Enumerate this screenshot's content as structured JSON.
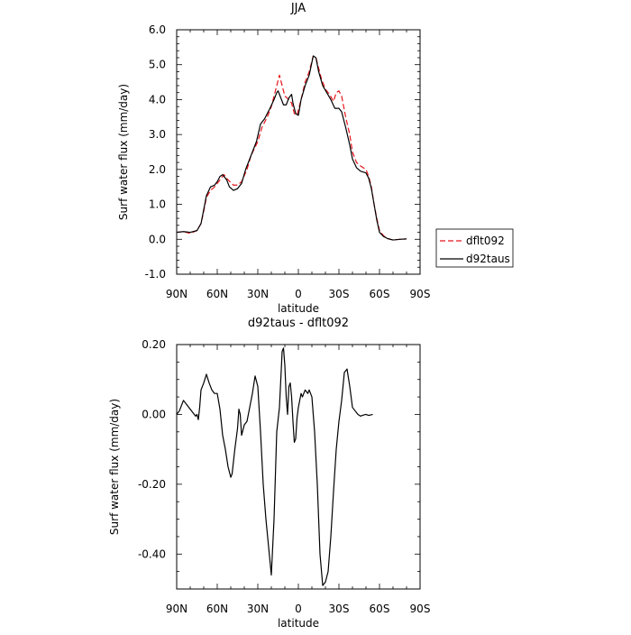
{
  "chart_data": [
    {
      "type": "line",
      "title": "JJA",
      "xlabel": "latitude",
      "ylabel": "Surf water flux (mm/day)",
      "xlim": [
        90,
        -90
      ],
      "ylim": [
        -1.0,
        6.0
      ],
      "x_ticks": [
        90,
        60,
        30,
        0,
        -30,
        -60,
        -90
      ],
      "x_tick_labels": [
        "90N",
        "60N",
        "30N",
        "0",
        "30S",
        "60S",
        "90S"
      ],
      "y_ticks": [
        -1.0,
        0.0,
        1.0,
        2.0,
        3.0,
        4.0,
        5.0,
        6.0
      ],
      "y_tick_labels": [
        "-1.0",
        "0.0",
        "1.0",
        "2.0",
        "3.0",
        "4.0",
        "5.0",
        "6.0"
      ],
      "legend_position": "right",
      "series": [
        {
          "name": "dflt092",
          "color": "#e8141a",
          "style": "dashed",
          "points": [
            [
              90,
              0.2
            ],
            [
              85,
              0.22
            ],
            [
              80,
              0.17
            ],
            [
              75,
              0.25
            ],
            [
              72,
              0.45
            ],
            [
              70,
              0.8
            ],
            [
              68,
              1.2
            ],
            [
              65,
              1.4
            ],
            [
              62,
              1.5
            ],
            [
              58,
              1.7
            ],
            [
              55,
              1.85
            ],
            [
              52,
              1.7
            ],
            [
              48,
              1.55
            ],
            [
              45,
              1.55
            ],
            [
              42,
              1.65
            ],
            [
              38,
              2.0
            ],
            [
              35,
              2.4
            ],
            [
              30,
              2.8
            ],
            [
              27,
              3.2
            ],
            [
              23,
              3.5
            ],
            [
              20,
              3.8
            ],
            [
              18,
              4.1
            ],
            [
              16,
              4.4
            ],
            [
              14,
              4.7
            ],
            [
              12,
              4.4
            ],
            [
              10,
              4.1
            ],
            [
              7,
              4.0
            ],
            [
              5,
              3.9
            ],
            [
              3,
              3.6
            ],
            [
              1,
              3.55
            ],
            [
              -2,
              4.0
            ],
            [
              -5,
              4.5
            ],
            [
              -8,
              4.8
            ],
            [
              -11,
              5.25
            ],
            [
              -13,
              5.2
            ],
            [
              -15,
              4.9
            ],
            [
              -17,
              4.6
            ],
            [
              -20,
              4.3
            ],
            [
              -23,
              4.15
            ],
            [
              -26,
              3.95
            ],
            [
              -28,
              4.2
            ],
            [
              -30,
              4.25
            ],
            [
              -32,
              4.1
            ],
            [
              -35,
              3.5
            ],
            [
              -38,
              3.0
            ],
            [
              -40,
              2.5
            ],
            [
              -43,
              2.2
            ],
            [
              -46,
              2.1
            ],
            [
              -50,
              2.0
            ],
            [
              -52,
              1.8
            ],
            [
              -54,
              1.5
            ],
            [
              -56,
              1.0
            ],
            [
              -58,
              0.6
            ],
            [
              -60,
              0.25
            ],
            [
              -63,
              0.1
            ],
            [
              -66,
              0.02
            ],
            [
              -70,
              -0.02
            ],
            [
              -75,
              0.0
            ],
            [
              -80,
              0.01
            ]
          ]
        },
        {
          "name": "d92taus",
          "color": "#000000",
          "style": "solid",
          "points": [
            [
              90,
              0.2
            ],
            [
              85,
              0.22
            ],
            [
              80,
              0.2
            ],
            [
              75,
              0.25
            ],
            [
              72,
              0.45
            ],
            [
              70,
              0.85
            ],
            [
              68,
              1.25
            ],
            [
              65,
              1.5
            ],
            [
              62,
              1.55
            ],
            [
              60,
              1.65
            ],
            [
              58,
              1.8
            ],
            [
              56,
              1.85
            ],
            [
              53,
              1.7
            ],
            [
              51,
              1.5
            ],
            [
              48,
              1.4
            ],
            [
              45,
              1.45
            ],
            [
              42,
              1.6
            ],
            [
              39,
              2.0
            ],
            [
              35,
              2.4
            ],
            [
              31,
              2.8
            ],
            [
              28,
              3.3
            ],
            [
              25,
              3.45
            ],
            [
              21,
              3.75
            ],
            [
              18,
              4.0
            ],
            [
              16,
              4.2
            ],
            [
              15,
              4.25
            ],
            [
              13,
              4.05
            ],
            [
              11,
              3.85
            ],
            [
              9,
              3.85
            ],
            [
              7,
              4.05
            ],
            [
              5,
              4.15
            ],
            [
              4,
              3.9
            ],
            [
              2,
              3.6
            ],
            [
              0,
              3.55
            ],
            [
              -2,
              4.0
            ],
            [
              -5,
              4.4
            ],
            [
              -8,
              4.7
            ],
            [
              -11,
              5.25
            ],
            [
              -13,
              5.2
            ],
            [
              -15,
              4.8
            ],
            [
              -18,
              4.4
            ],
            [
              -21,
              4.2
            ],
            [
              -24,
              4.0
            ],
            [
              -27,
              3.75
            ],
            [
              -30,
              3.75
            ],
            [
              -32,
              3.65
            ],
            [
              -35,
              3.2
            ],
            [
              -38,
              2.7
            ],
            [
              -40,
              2.3
            ],
            [
              -43,
              2.05
            ],
            [
              -46,
              1.95
            ],
            [
              -50,
              1.9
            ],
            [
              -52,
              1.75
            ],
            [
              -54,
              1.45
            ],
            [
              -56,
              1.0
            ],
            [
              -58,
              0.55
            ],
            [
              -60,
              0.2
            ],
            [
              -63,
              0.08
            ],
            [
              -66,
              0.02
            ],
            [
              -70,
              -0.02
            ],
            [
              -75,
              0.0
            ],
            [
              -80,
              0.01
            ]
          ]
        }
      ]
    },
    {
      "type": "line",
      "title": "d92taus - dflt092",
      "xlabel": "latitude",
      "ylabel": "Surf water flux (mm/day)",
      "xlim": [
        90,
        -90
      ],
      "ylim": [
        -0.5,
        0.2
      ],
      "x_ticks": [
        90,
        60,
        30,
        0,
        -30,
        -60,
        -90
      ],
      "x_tick_labels": [
        "90N",
        "60N",
        "30N",
        "0",
        "30S",
        "60S",
        "90S"
      ],
      "y_ticks": [
        -0.4,
        -0.2,
        0.0,
        0.2
      ],
      "y_tick_labels": [
        "-0.40",
        "-0.20",
        "0.00",
        "0.20"
      ],
      "series": [
        {
          "color": "#000000",
          "style": "solid",
          "points": [
            [
              90,
              0.0
            ],
            [
              88,
              0.01
            ],
            [
              85,
              0.04
            ],
            [
              82,
              0.025
            ],
            [
              80,
              0.015
            ],
            [
              78,
              0.005
            ],
            [
              76,
              -0.005
            ],
            [
              75,
              0.0
            ],
            [
              74,
              -0.015
            ],
            [
              73,
              0.02
            ],
            [
              72,
              0.07
            ],
            [
              70,
              0.09
            ],
            [
              68,
              0.115
            ],
            [
              66,
              0.09
            ],
            [
              64,
              0.07
            ],
            [
              62,
              0.06
            ],
            [
              60,
              0.06
            ],
            [
              58,
              0.015
            ],
            [
              56,
              -0.06
            ],
            [
              54,
              -0.1
            ],
            [
              52,
              -0.15
            ],
            [
              50,
              -0.18
            ],
            [
              49,
              -0.17
            ],
            [
              47,
              -0.1
            ],
            [
              45,
              -0.04
            ],
            [
              44,
              0.015
            ],
            [
              43,
              0.0
            ],
            [
              42,
              -0.06
            ],
            [
              40,
              -0.03
            ],
            [
              38,
              -0.02
            ],
            [
              36,
              0.02
            ],
            [
              34,
              0.06
            ],
            [
              32,
              0.11
            ],
            [
              30,
              0.08
            ],
            [
              28,
              -0.05
            ],
            [
              26,
              -0.2
            ],
            [
              24,
              -0.3
            ],
            [
              22,
              -0.38
            ],
            [
              20,
              -0.46
            ],
            [
              18,
              -0.3
            ],
            [
              16,
              -0.05
            ],
            [
              14,
              0.02
            ],
            [
              13,
              0.1
            ],
            [
              12,
              0.18
            ],
            [
              11,
              0.19
            ],
            [
              10,
              0.14
            ],
            [
              9,
              0.05
            ],
            [
              8,
              0.0
            ],
            [
              7,
              0.08
            ],
            [
              6,
              0.09
            ],
            [
              5,
              0.05
            ],
            [
              4,
              -0.02
            ],
            [
              3,
              -0.08
            ],
            [
              2,
              -0.07
            ],
            [
              1,
              -0.01
            ],
            [
              0,
              0.02
            ],
            [
              -2,
              0.06
            ],
            [
              -3,
              0.05
            ],
            [
              -5,
              0.07
            ],
            [
              -7,
              0.06
            ],
            [
              -8,
              0.07
            ],
            [
              -10,
              0.05
            ],
            [
              -12,
              -0.05
            ],
            [
              -14,
              -0.2
            ],
            [
              -16,
              -0.4
            ],
            [
              -18,
              -0.49
            ],
            [
              -20,
              -0.48
            ],
            [
              -22,
              -0.45
            ],
            [
              -24,
              -0.35
            ],
            [
              -26,
              -0.22
            ],
            [
              -28,
              -0.1
            ],
            [
              -30,
              -0.02
            ],
            [
              -32,
              0.04
            ],
            [
              -34,
              0.12
            ],
            [
              -36,
              0.13
            ],
            [
              -38,
              0.08
            ],
            [
              -40,
              0.02
            ],
            [
              -42,
              0.01
            ],
            [
              -44,
              0.0
            ],
            [
              -46,
              -0.005
            ],
            [
              -48,
              -0.002
            ],
            [
              -50,
              0.0
            ],
            [
              -52,
              -0.003
            ],
            [
              -55,
              0.0
            ]
          ]
        }
      ]
    }
  ]
}
